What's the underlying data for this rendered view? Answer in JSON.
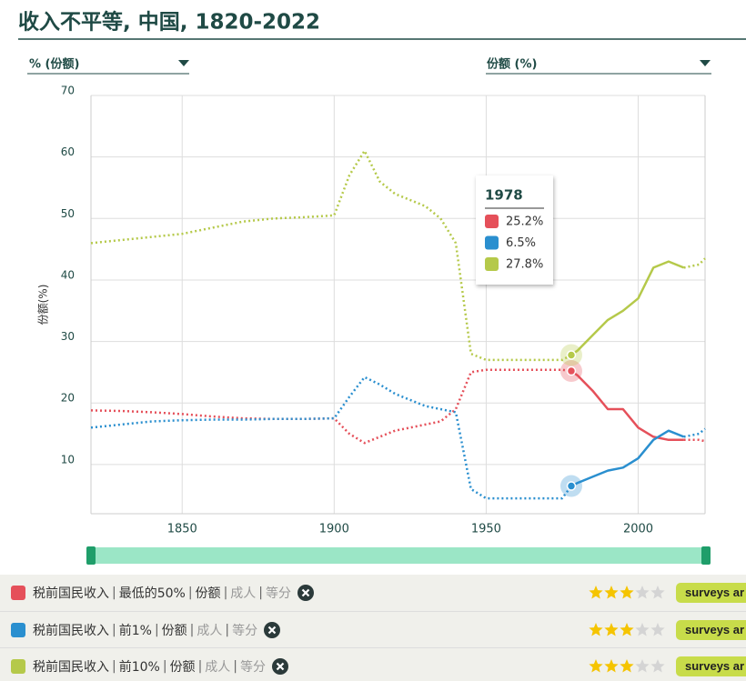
{
  "header": {
    "title": "收入不平等, 中国, 1820-2022",
    "left_dropdown": "% (份额)",
    "right_dropdown": "份额 (%)"
  },
  "chart_data": {
    "type": "line",
    "y_label": "份额(%)",
    "x": [
      1820,
      1830,
      1840,
      1850,
      1860,
      1870,
      1880,
      1890,
      1900,
      1905,
      1910,
      1915,
      1920,
      1925,
      1930,
      1935,
      1940,
      1945,
      1950,
      1955,
      1960,
      1965,
      1970,
      1975,
      1978,
      1980,
      1985,
      1990,
      1995,
      2000,
      2005,
      2010,
      2015,
      2020,
      2022
    ],
    "xlim": [
      1820,
      2022
    ],
    "xticks": [
      1850,
      1900,
      1950,
      2000
    ],
    "ylim": [
      2,
      70
    ],
    "yticks": [
      10,
      20,
      30,
      40,
      50,
      60,
      70
    ],
    "grid": true,
    "solid_x": [
      1978,
      2015
    ],
    "series": [
      {
        "color": "#e5505a",
        "values": [
          18.8,
          18.7,
          18.5,
          18.2,
          17.8,
          17.5,
          17.4,
          17.4,
          17.5,
          15,
          13.5,
          14.5,
          15.5,
          16,
          16.5,
          17,
          19,
          25,
          25.4,
          25.4,
          25.4,
          25.4,
          25.4,
          25.4,
          25.2,
          24.5,
          22,
          19,
          19,
          16,
          14.5,
          14,
          14,
          14,
          13.8
        ]
      },
      {
        "color": "#2a8fcf",
        "values": [
          16,
          16.5,
          17,
          17.2,
          17.3,
          17.3,
          17.4,
          17.4,
          17.5,
          21,
          24.2,
          23,
          21.5,
          20.5,
          19.5,
          19,
          18.5,
          6,
          4.5,
          4.5,
          4.5,
          4.5,
          4.5,
          4.5,
          6.5,
          7,
          8,
          9,
          9.5,
          11,
          14,
          15.5,
          14.5,
          15,
          15.8
        ]
      },
      {
        "color": "#b5c94a",
        "values": [
          46,
          46.5,
          47,
          47.5,
          48.5,
          49.5,
          50,
          50.2,
          50.5,
          57,
          61,
          56,
          54,
          53,
          52,
          50,
          46,
          28,
          27,
          27,
          27,
          27,
          27,
          27,
          27.8,
          28.5,
          31,
          33.5,
          35,
          37,
          42,
          43,
          42,
          42.5,
          43.5
        ]
      }
    ],
    "tooltip": {
      "year": 1978,
      "values": [
        25.2,
        6.5,
        27.8
      ],
      "value_labels": [
        "25.2%",
        "6.5%",
        "27.8%"
      ]
    }
  },
  "legend": {
    "rating_max": 5,
    "rows": [
      {
        "segments": [
          "税前国民收入",
          "最低的50%",
          "份额",
          "成人",
          "等分"
        ],
        "rating": 3,
        "button": "surveys ar"
      },
      {
        "segments": [
          "税前国民收入",
          "前1%",
          "份额",
          "成人",
          "等分"
        ],
        "rating": 3,
        "button": "surveys ar"
      },
      {
        "segments": [
          "税前国民收入",
          "前10%",
          "份额",
          "成人",
          "等分"
        ],
        "rating": 3,
        "button": "surveys ar"
      }
    ]
  }
}
